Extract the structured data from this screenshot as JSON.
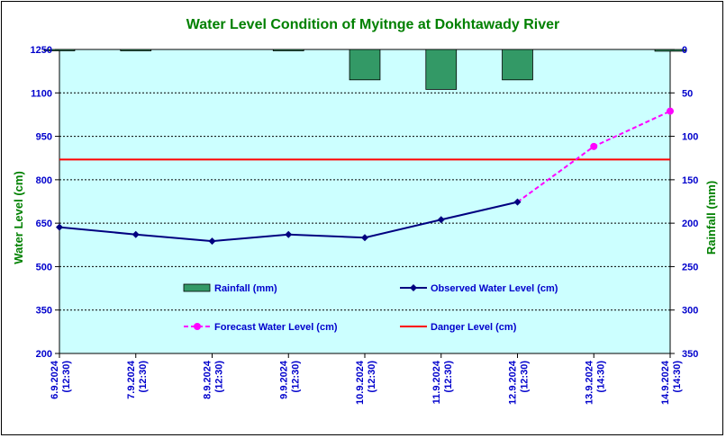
{
  "chart_data": {
    "type": "line",
    "title": "Water Level Condition of Myitnge at Dokhtawady River",
    "ylabel": "Water Level (cm)",
    "y2label": "Rainfall (mm)",
    "categories": [
      [
        "6.9.2024",
        "(12:30)"
      ],
      [
        "7.9.2024",
        "(12:30)"
      ],
      [
        "8.9.2024",
        "(12:30)"
      ],
      [
        "9.9.2024",
        "(12:30)"
      ],
      [
        "10.9.2024",
        "(12:30)"
      ],
      [
        "11.9.2024",
        "(12:30)"
      ],
      [
        "12.9.2024",
        "(12:30)"
      ],
      [
        "13.9.2024",
        "(14:30)"
      ],
      [
        "14.9.2024",
        "(14:30)"
      ]
    ],
    "ylim": [
      200,
      1250
    ],
    "yticks": [
      1250,
      1100,
      950,
      800,
      650,
      500,
      350,
      200
    ],
    "y2lim": [
      0,
      350
    ],
    "y2ticks": [
      0,
      50,
      100,
      150,
      200,
      250,
      300,
      350
    ],
    "grid": true,
    "legend_position": "inside-bottom",
    "colors": {
      "plot_bg": "#ccffff",
      "rain": "#339966",
      "observed": "#000080",
      "forecast": "#ff00ff",
      "danger": "#ff0000",
      "title": "#008000",
      "tick": "#0000cc"
    },
    "series": [
      {
        "name": "Rainfall (mm)",
        "kind": "bar",
        "axis": "right",
        "values": [
          1,
          1,
          0,
          0.5,
          35,
          46,
          35,
          0,
          2
        ]
      },
      {
        "name": "Observed Water Level (cm)",
        "kind": "line",
        "axis": "left",
        "values": [
          636,
          611,
          588,
          611,
          600,
          662,
          723,
          null,
          null
        ]
      },
      {
        "name": "Forecast Water Level (cm)",
        "kind": "dashed-line",
        "axis": "left",
        "values": [
          null,
          null,
          null,
          null,
          null,
          null,
          null,
          915,
          1037
        ]
      },
      {
        "name": "Danger Level (cm)",
        "kind": "hline",
        "axis": "left",
        "value": 870
      }
    ]
  }
}
